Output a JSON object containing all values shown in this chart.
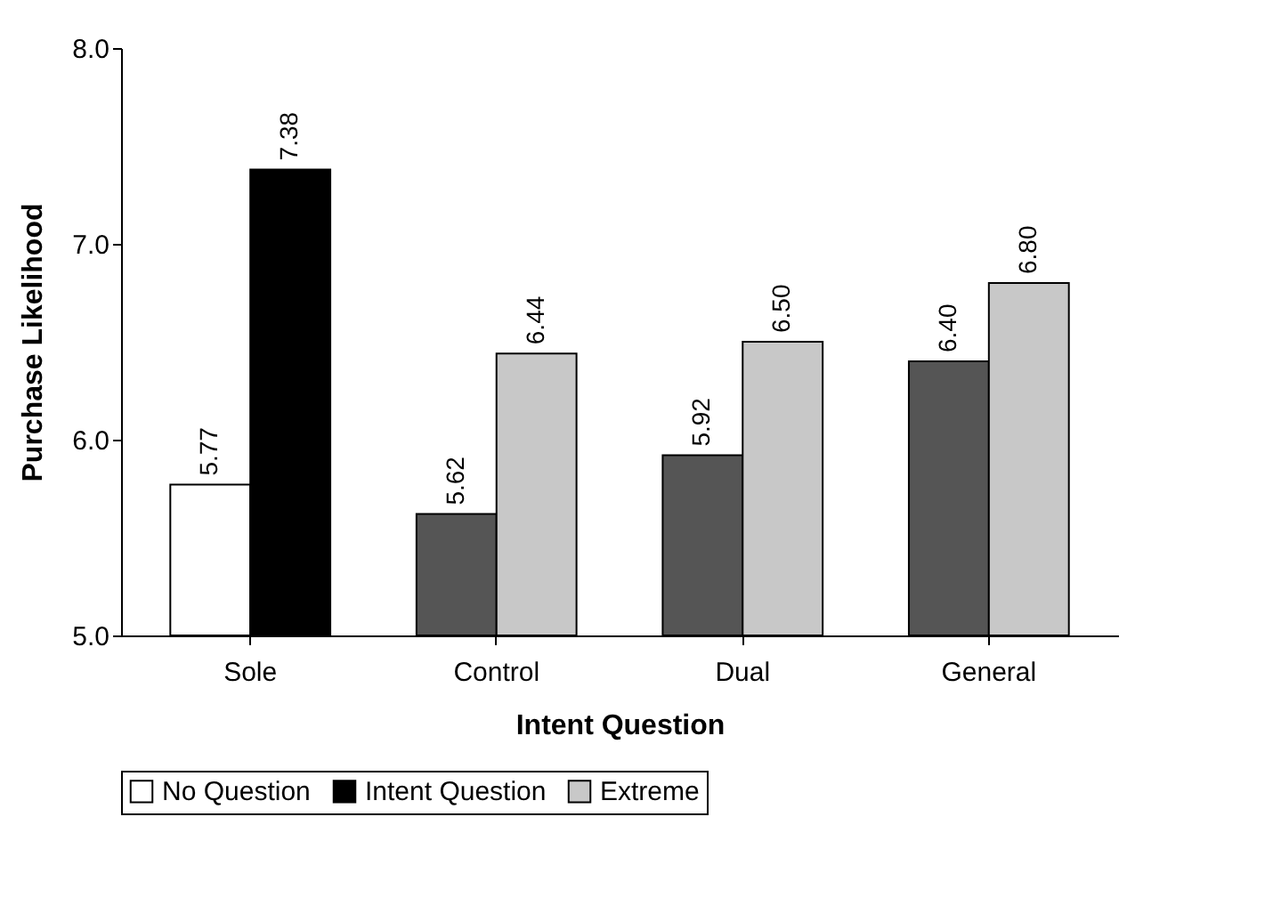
{
  "chart_data": {
    "type": "bar",
    "xlabel": "Intent Question",
    "ylabel": "Purchase Likelihood",
    "categories": [
      "Sole",
      "Control",
      "Dual",
      "General"
    ],
    "series": [
      {
        "name": "No Question",
        "color": "#ffffff",
        "values": [
          5.77,
          null,
          null,
          null
        ],
        "value_labels": [
          "5.77",
          null,
          null,
          null
        ]
      },
      {
        "name": "Intent Question",
        "color": "#000000",
        "values": [
          7.38,
          null,
          null,
          null
        ],
        "value_labels": [
          "7.38",
          null,
          null,
          null
        ]
      },
      {
        "color": "#555555",
        "values": [
          null,
          5.62,
          5.92,
          6.4
        ],
        "value_labels": [
          null,
          "5.62",
          "5.92",
          "6.40"
        ]
      },
      {
        "name": "Extreme",
        "color": "#c8c8c8",
        "values": [
          null,
          6.44,
          6.5,
          6.8
        ],
        "value_labels": [
          null,
          "6.44",
          "6.50",
          "6.80"
        ]
      }
    ],
    "ylim": [
      5,
      8
    ],
    "yticks": [
      {
        "value": 5,
        "label": "5.0"
      },
      {
        "value": 6,
        "label": "6.0"
      },
      {
        "value": 7,
        "label": "7.0"
      },
      {
        "value": 8,
        "label": "8.0"
      }
    ],
    "grid": false,
    "legend": "bottom"
  }
}
